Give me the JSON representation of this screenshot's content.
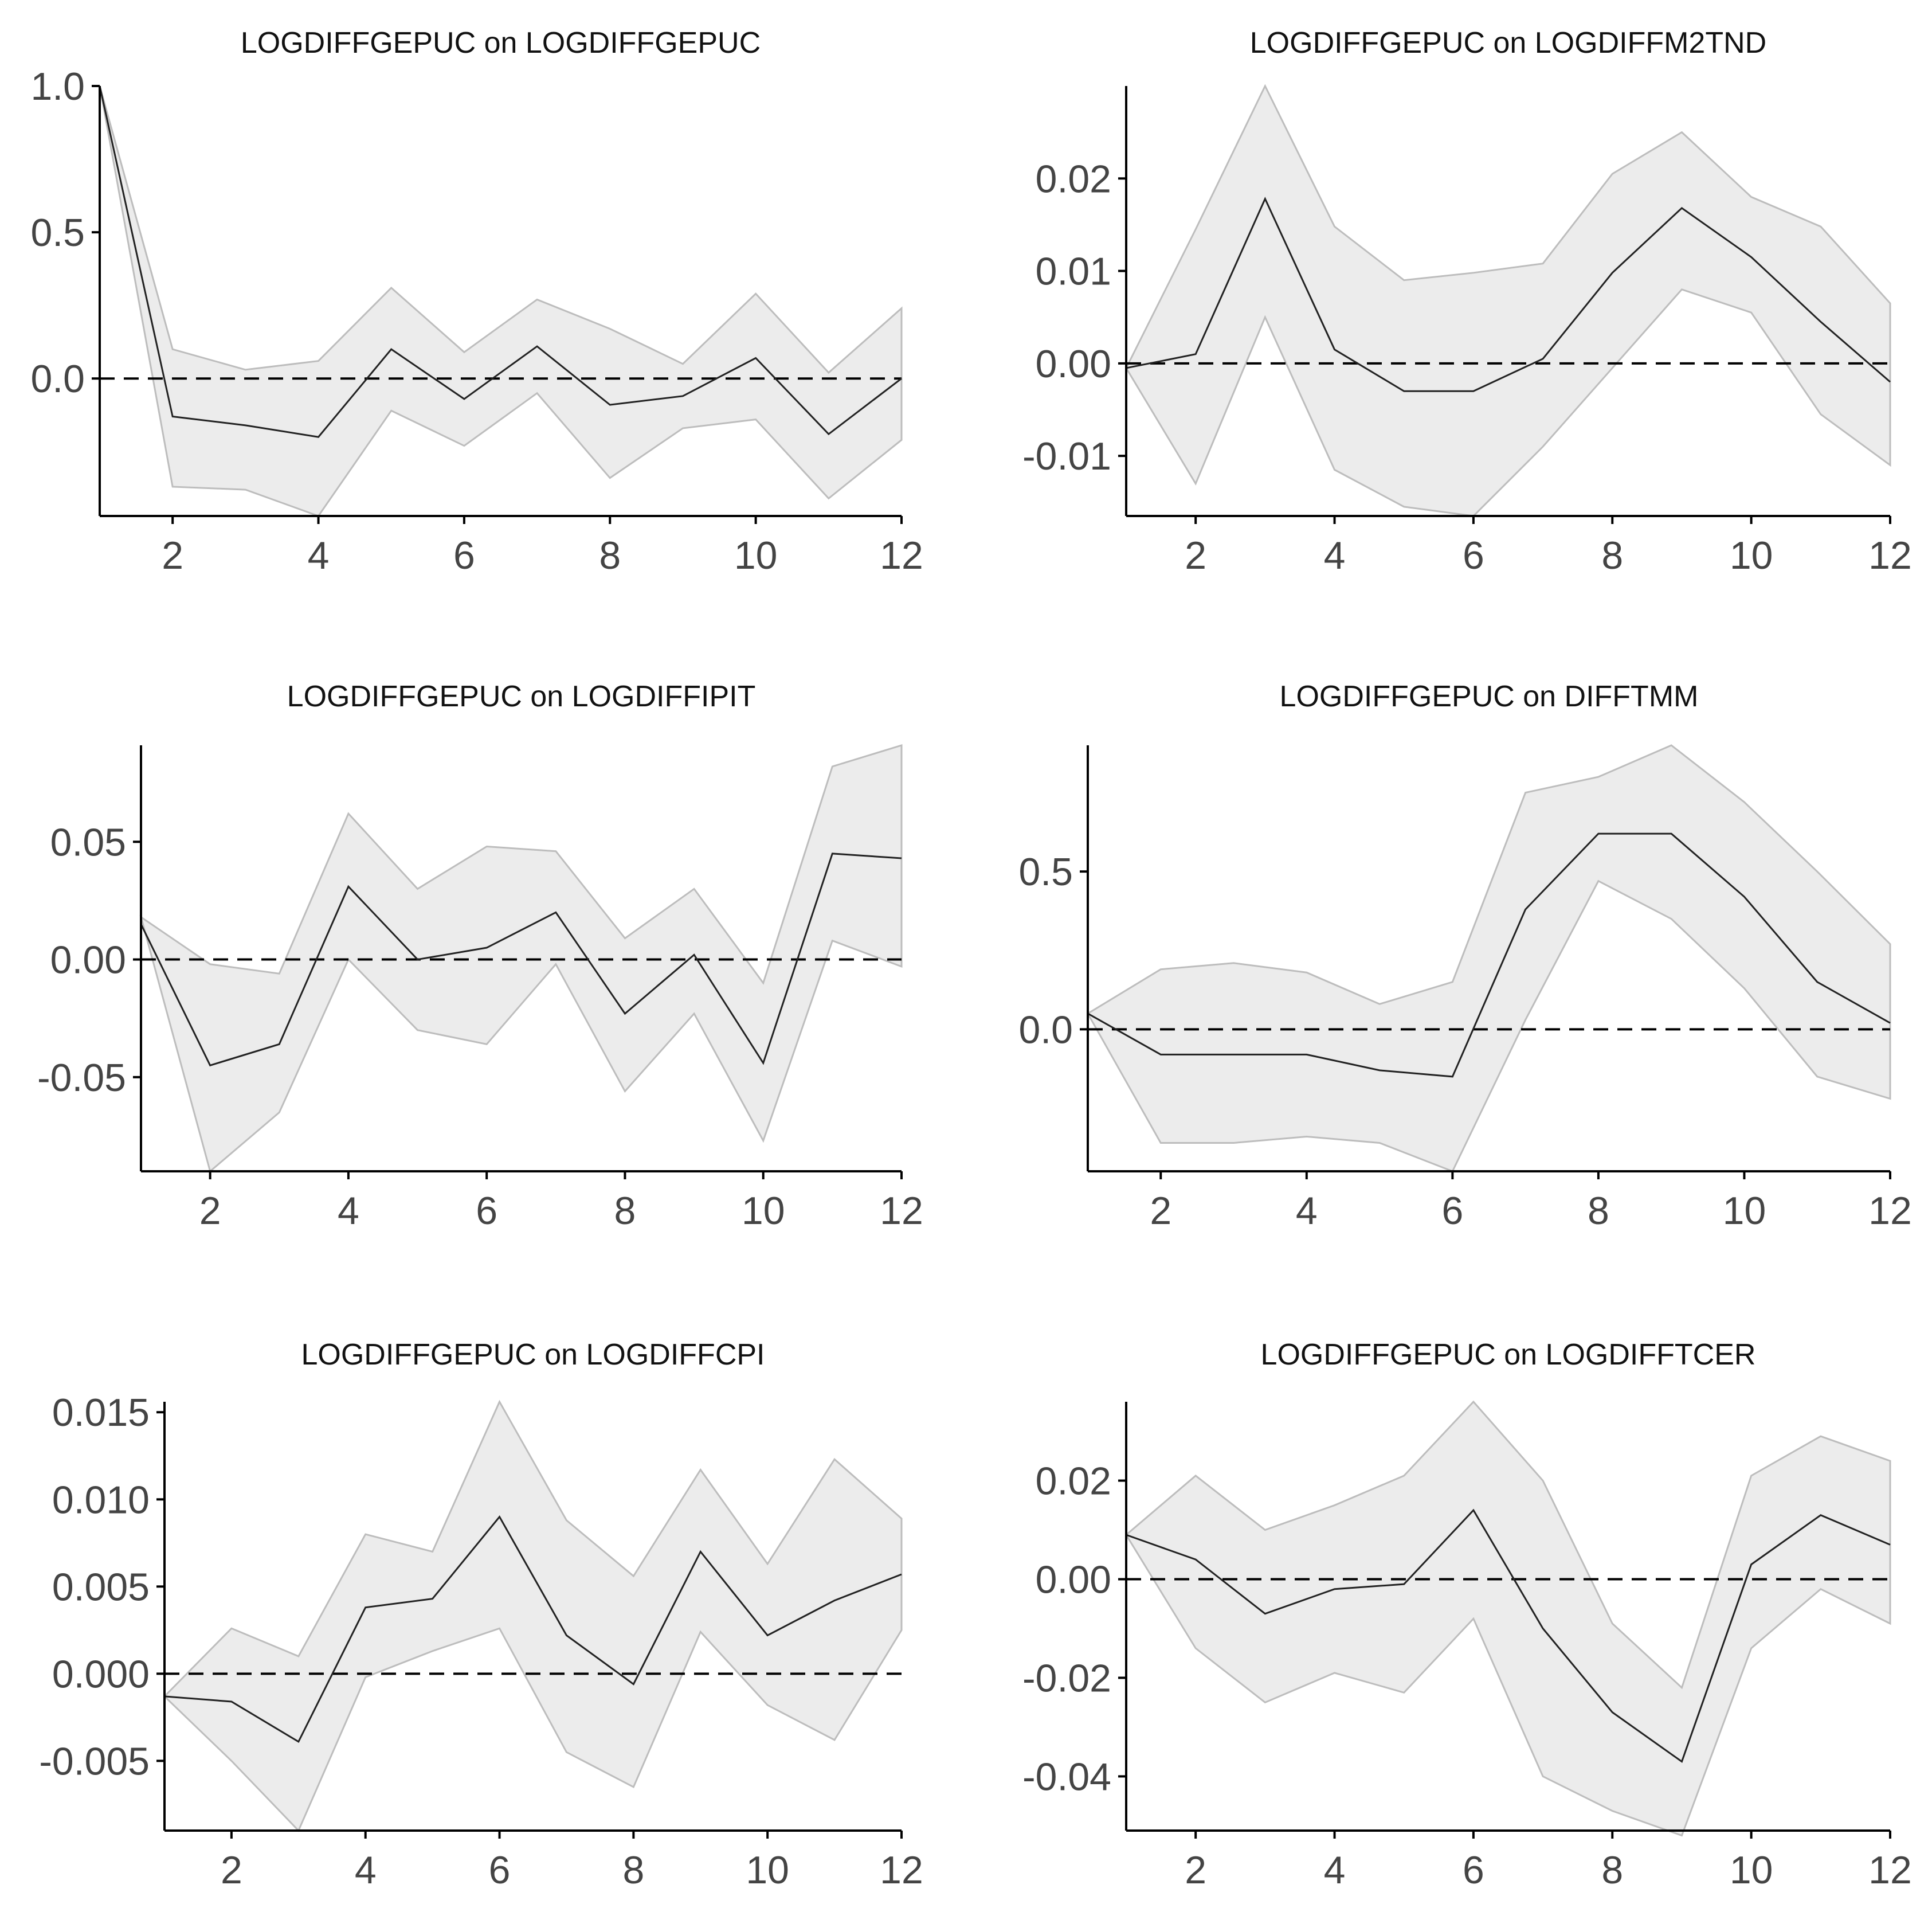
{
  "colors": {
    "band_fill": "#ececec",
    "band_edge": "#bdbdbd",
    "line": "#222222",
    "axis": "#000000",
    "tick_text": "#444444"
  },
  "chart_data": [
    {
      "type": "line",
      "title": "LOGDIFFGEPUC on LOGDIFFGEPUC",
      "x": [
        1,
        2,
        3,
        4,
        5,
        6,
        7,
        8,
        9,
        10,
        11,
        12
      ],
      "series": [
        {
          "name": "response",
          "values": [
            1.0,
            -0.13,
            -0.16,
            -0.2,
            0.1,
            -0.07,
            0.11,
            -0.09,
            -0.06,
            0.07,
            -0.19,
            0.0
          ]
        },
        {
          "name": "upper",
          "values": [
            1.0,
            0.1,
            0.03,
            0.06,
            0.31,
            0.09,
            0.27,
            0.17,
            0.05,
            0.29,
            0.02,
            0.24
          ]
        },
        {
          "name": "lower",
          "values": [
            1.0,
            -0.37,
            -0.38,
            -0.47,
            -0.11,
            -0.23,
            -0.05,
            -0.34,
            -0.17,
            -0.14,
            -0.41,
            -0.21
          ]
        }
      ],
      "xlim": [
        1,
        12
      ],
      "ylim": [
        -0.47,
        1.0
      ],
      "xticks": [
        2,
        4,
        6,
        8,
        10,
        12
      ],
      "xtick_labels": [
        "2",
        "4",
        "6",
        "8",
        "10",
        "12"
      ],
      "yticks": [
        1.0,
        0.5,
        0.0
      ],
      "ytick_labels": [
        "1.0",
        "0.5",
        "0.0"
      ],
      "xlabel": "",
      "ylabel": "",
      "grid": false
    },
    {
      "type": "line",
      "title": "LOGDIFFGEPUC on LOGDIFFM2TND",
      "x": [
        1,
        2,
        3,
        4,
        5,
        6,
        7,
        8,
        9,
        10,
        11,
        12
      ],
      "series": [
        {
          "name": "response",
          "values": [
            -0.0005,
            0.001,
            0.0178,
            0.0015,
            -0.003,
            -0.003,
            0.0005,
            0.0098,
            0.0168,
            0.0115,
            0.0045,
            -0.002
          ]
        },
        {
          "name": "upper",
          "values": [
            -0.0005,
            0.0145,
            0.03,
            0.0148,
            0.009,
            0.0098,
            0.0108,
            0.0205,
            0.025,
            0.018,
            0.0148,
            0.0065
          ]
        },
        {
          "name": "lower",
          "values": [
            -0.0005,
            -0.013,
            0.005,
            -0.0115,
            -0.0155,
            -0.0165,
            -0.009,
            -0.0005,
            0.008,
            0.0055,
            -0.0055,
            -0.011
          ]
        }
      ],
      "xlim": [
        1,
        12
      ],
      "ylim": [
        -0.0165,
        0.03
      ],
      "xticks": [
        2,
        4,
        6,
        8,
        10,
        12
      ],
      "xtick_labels": [
        "2",
        "4",
        "6",
        "8",
        "10",
        "12"
      ],
      "yticks": [
        0.02,
        0.01,
        0.0,
        -0.01
      ],
      "ytick_labels": [
        "0.02",
        "0.01",
        "0.00",
        "-0.01"
      ],
      "xlabel": "",
      "ylabel": "",
      "grid": false
    },
    {
      "type": "line",
      "title": "LOGDIFFGEPUC on LOGDIFFIPIT",
      "x": [
        1,
        2,
        3,
        4,
        5,
        6,
        7,
        8,
        9,
        10,
        11,
        12
      ],
      "series": [
        {
          "name": "response",
          "values": [
            0.015,
            -0.045,
            -0.036,
            0.031,
            0.0,
            0.005,
            0.02,
            -0.023,
            0.002,
            -0.044,
            0.045,
            0.043
          ]
        },
        {
          "name": "upper",
          "values": [
            0.018,
            -0.002,
            -0.006,
            0.062,
            0.03,
            0.048,
            0.046,
            0.009,
            0.03,
            -0.01,
            0.082,
            0.091
          ]
        },
        {
          "name": "lower",
          "values": [
            0.018,
            -0.09,
            -0.065,
            0.0,
            -0.03,
            -0.036,
            -0.002,
            -0.056,
            -0.023,
            -0.077,
            0.008,
            -0.003
          ]
        }
      ],
      "xlim": [
        1,
        12
      ],
      "ylim": [
        -0.09,
        0.091
      ],
      "xticks": [
        2,
        4,
        6,
        8,
        10,
        12
      ],
      "xtick_labels": [
        "2",
        "4",
        "6",
        "8",
        "10",
        "12"
      ],
      "yticks": [
        0.05,
        0.0,
        -0.05
      ],
      "ytick_labels": [
        "0.05",
        "0.00",
        "-0.05"
      ],
      "xlabel": "",
      "ylabel": "",
      "grid": false
    },
    {
      "type": "line",
      "title": "LOGDIFFGEPUC on DIFFTMM",
      "x": [
        1,
        2,
        3,
        4,
        5,
        6,
        7,
        8,
        9,
        10,
        11,
        12
      ],
      "series": [
        {
          "name": "response",
          "values": [
            0.05,
            -0.08,
            -0.08,
            -0.08,
            -0.13,
            -0.15,
            0.38,
            0.62,
            0.62,
            0.42,
            0.15,
            0.02
          ]
        },
        {
          "name": "upper",
          "values": [
            0.05,
            0.19,
            0.21,
            0.18,
            0.08,
            0.15,
            0.75,
            0.8,
            0.9,
            0.72,
            0.5,
            0.27
          ]
        },
        {
          "name": "lower",
          "values": [
            0.05,
            -0.36,
            -0.36,
            -0.34,
            -0.36,
            -0.45,
            0.03,
            0.47,
            0.35,
            0.13,
            -0.15,
            -0.22
          ]
        }
      ],
      "xlim": [
        1,
        12
      ],
      "ylim": [
        -0.45,
        0.9
      ],
      "xticks": [
        2,
        4,
        6,
        8,
        10,
        12
      ],
      "xtick_labels": [
        "2",
        "4",
        "6",
        "8",
        "10",
        "12"
      ],
      "yticks": [
        0.5,
        0.0
      ],
      "ytick_labels": [
        "0.5",
        "0.0"
      ],
      "xlabel": "",
      "ylabel": "",
      "grid": false
    },
    {
      "type": "line",
      "title": "LOGDIFFGEPUC on LOGDIFFCPI",
      "x": [
        1,
        2,
        3,
        4,
        5,
        6,
        7,
        8,
        9,
        10,
        11,
        12
      ],
      "series": [
        {
          "name": "response",
          "values": [
            -0.0013,
            -0.0016,
            -0.0039,
            0.0038,
            0.0043,
            0.009,
            0.0022,
            -0.0006,
            0.007,
            0.0022,
            0.0042,
            0.0057
          ]
        },
        {
          "name": "upper",
          "values": [
            -0.0013,
            0.0026,
            0.001,
            0.008,
            0.007,
            0.0156,
            0.0088,
            0.0056,
            0.0117,
            0.0063,
            0.0123,
            0.0089
          ]
        },
        {
          "name": "lower",
          "values": [
            -0.0013,
            -0.005,
            -0.009,
            -0.0002,
            0.0013,
            0.0026,
            -0.0045,
            -0.0065,
            0.0024,
            -0.0018,
            -0.0038,
            0.0025
          ]
        }
      ],
      "xlim": [
        1,
        12
      ],
      "ylim": [
        -0.009,
        0.0156
      ],
      "xticks": [
        2,
        4,
        6,
        8,
        10,
        12
      ],
      "xtick_labels": [
        "2",
        "4",
        "6",
        "8",
        "10",
        "12"
      ],
      "yticks": [
        0.015,
        0.01,
        0.005,
        0.0,
        -0.005
      ],
      "ytick_labels": [
        "0.015",
        "0.010",
        "0.005",
        "0.000",
        "-0.005"
      ],
      "xlabel": "",
      "ylabel": "",
      "grid": false
    },
    {
      "type": "line",
      "title": "LOGDIFFGEPUC on LOGDIFFTCER",
      "x": [
        1,
        2,
        3,
        4,
        5,
        6,
        7,
        8,
        9,
        10,
        11,
        12
      ],
      "series": [
        {
          "name": "response",
          "values": [
            0.009,
            0.004,
            -0.007,
            -0.002,
            -0.001,
            0.014,
            -0.01,
            -0.027,
            -0.037,
            0.003,
            0.013,
            0.007
          ]
        },
        {
          "name": "upper",
          "values": [
            0.009,
            0.021,
            0.01,
            0.015,
            0.021,
            0.036,
            0.02,
            -0.009,
            -0.022,
            0.021,
            0.029,
            0.024
          ]
        },
        {
          "name": "lower",
          "values": [
            0.009,
            -0.014,
            -0.025,
            -0.019,
            -0.023,
            -0.008,
            -0.04,
            -0.047,
            -0.052,
            -0.014,
            -0.002,
            -0.009
          ]
        }
      ],
      "xlim": [
        1,
        12
      ],
      "ylim": [
        -0.051,
        0.036
      ],
      "xticks": [
        2,
        4,
        6,
        8,
        10,
        12
      ],
      "xtick_labels": [
        "2",
        "4",
        "6",
        "8",
        "10",
        "12"
      ],
      "yticks": [
        0.02,
        0.0,
        -0.02,
        -0.04
      ],
      "ytick_labels": [
        "0.02",
        "0.00",
        "-0.02",
        "-0.04"
      ],
      "xlabel": "",
      "ylabel": "",
      "grid": false
    }
  ]
}
